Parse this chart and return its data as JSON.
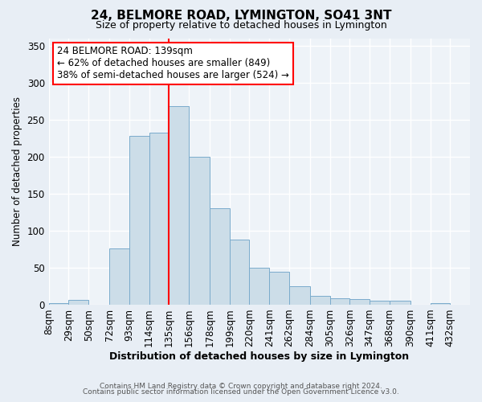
{
  "title": "24, BELMORE ROAD, LYMINGTON, SO41 3NT",
  "subtitle": "Size of property relative to detached houses in Lymington",
  "xlabel": "Distribution of detached houses by size in Lymington",
  "ylabel": "Number of detached properties",
  "bin_labels": [
    "8sqm",
    "29sqm",
    "50sqm",
    "72sqm",
    "93sqm",
    "114sqm",
    "135sqm",
    "156sqm",
    "178sqm",
    "199sqm",
    "220sqm",
    "241sqm",
    "262sqm",
    "284sqm",
    "305sqm",
    "326sqm",
    "347sqm",
    "368sqm",
    "390sqm",
    "411sqm",
    "432sqm"
  ],
  "bin_edges": [
    8,
    29,
    50,
    72,
    93,
    114,
    135,
    156,
    178,
    199,
    220,
    241,
    262,
    284,
    305,
    326,
    347,
    368,
    390,
    411,
    432
  ],
  "bar_heights": [
    2,
    6,
    0,
    76,
    228,
    232,
    268,
    200,
    130,
    88,
    50,
    44,
    25,
    12,
    9,
    8,
    5,
    5,
    0,
    2,
    0
  ],
  "bar_color": "#ccdde8",
  "bar_edge_color": "#7aabcc",
  "vline_x": 135,
  "vline_color": "red",
  "annotation_title": "24 BELMORE ROAD: 139sqm",
  "annotation_line1": "← 62% of detached houses are smaller (849)",
  "annotation_line2": "38% of semi-detached houses are larger (524) →",
  "ylim": [
    0,
    360
  ],
  "yticks": [
    0,
    50,
    100,
    150,
    200,
    250,
    300,
    350
  ],
  "footer1": "Contains HM Land Registry data © Crown copyright and database right 2024.",
  "footer2": "Contains public sector information licensed under the Open Government Licence v3.0.",
  "bg_color": "#e8eef5",
  "plot_bg_color": "#eef3f8",
  "grid_color": "#ffffff"
}
